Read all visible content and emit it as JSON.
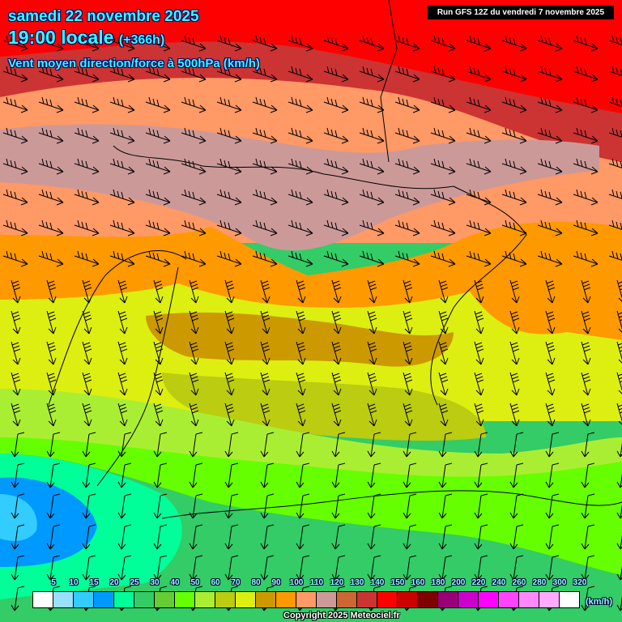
{
  "header": {
    "date": "samedi 22 novembre 2025",
    "time": "19:00 locale",
    "lead": "(+366h)",
    "parameter": "Vent moyen direction/force à 500hPa (km/h)",
    "run": "Run GFS 12Z du vendredi 7 novembre 2025"
  },
  "legend": {
    "unit": "(km/h)",
    "labels": [
      "5",
      "10",
      "15",
      "20",
      "25",
      "30",
      "40",
      "50",
      "60",
      "70",
      "80",
      "90",
      "100",
      "110",
      "120",
      "130",
      "140",
      "150",
      "160",
      "180",
      "200",
      "220",
      "240",
      "260",
      "280",
      "300",
      "320"
    ],
    "colors": [
      "#ffffff",
      "#99e0ff",
      "#33ccff",
      "#0099ff",
      "#00ff99",
      "#33cc66",
      "#66cc33",
      "#66ff00",
      "#aaee33",
      "#bbcc11",
      "#ddee11",
      "#cc9900",
      "#ff9900",
      "#ff9966",
      "#cc9999",
      "#cc6633",
      "#cc3333",
      "#ff0000",
      "#cc0000",
      "#800000",
      "#990077",
      "#cc00cc",
      "#ff00ff",
      "#ff44ff",
      "#ff88ff",
      "#ffaaff",
      "#ffffff"
    ]
  },
  "footer": {
    "copyright": "Copyright 2025 Meteociel.fr"
  }
}
